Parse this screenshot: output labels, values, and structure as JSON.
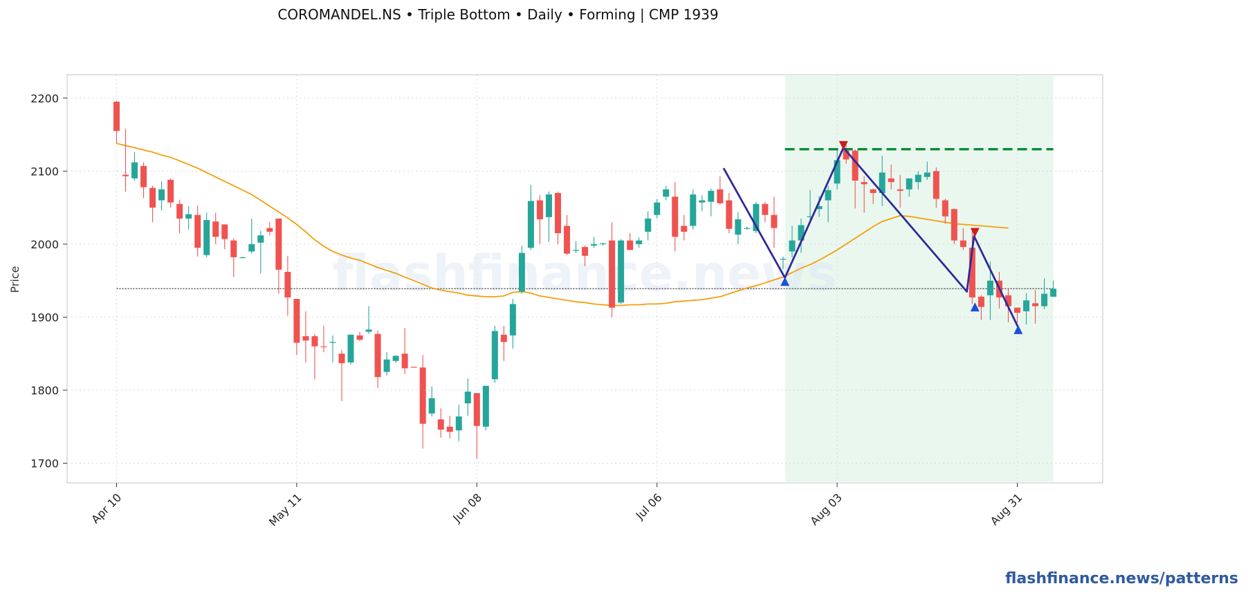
{
  "title": "COROMANDEL.NS  •  Triple Bottom  •  Daily  •  Forming  |  CMP 1939",
  "watermark": "flashfinance.news",
  "brand_link": "flashfinance.news/patterns",
  "colors": {
    "up": "#26a69a",
    "down": "#ef5350",
    "ma": "#f59e0b",
    "pattern": "#2e2a9a",
    "resistance": "#0a8a3a",
    "zone": "#dff2e6",
    "marker_low": "#1f4fd8",
    "marker_high": "#c81e1e",
    "cmp_line": "#333333"
  },
  "chart_data": {
    "type": "candlestick",
    "title": "COROMANDEL.NS  •  Triple Bottom  •  Daily  •  Forming  |  CMP 1939",
    "xlabel": "",
    "ylabel": "Price",
    "ylim": [
      1673,
      2232
    ],
    "yticks": [
      1700,
      1800,
      1900,
      2000,
      2100,
      2200
    ],
    "xticks": [
      {
        "label": "Apr 10",
        "index": 0
      },
      {
        "label": "May 11",
        "index": 20
      },
      {
        "label": "Jun 08",
        "index": 40
      },
      {
        "label": "Jul 06",
        "index": 60
      },
      {
        "label": "Aug 03",
        "index": 80
      },
      {
        "label": "Aug 31",
        "index": 100
      }
    ],
    "grid": true,
    "cmp": 1939,
    "resistance_level": 2130,
    "candles": [
      [
        2195,
        2196,
        2138,
        2155
      ],
      [
        2095,
        2158,
        2072,
        2093
      ],
      [
        2090,
        2126,
        2087,
        2112
      ],
      [
        2107,
        2112,
        2063,
        2078
      ],
      [
        2077,
        2080,
        2030,
        2050
      ],
      [
        2060,
        2086,
        2046,
        2075
      ],
      [
        2088,
        2090,
        2050,
        2057
      ],
      [
        2055,
        2061,
        2015,
        2035
      ],
      [
        2035,
        2052,
        2020,
        2041
      ],
      [
        2040,
        2053,
        1983,
        1995
      ],
      [
        1985,
        2043,
        1982,
        2033
      ],
      [
        2031,
        2043,
        2000,
        2010
      ],
      [
        2027,
        2027,
        1993,
        2007
      ],
      [
        2005,
        2008,
        1955,
        1982
      ],
      [
        1982,
        1983,
        1981,
        1982
      ],
      [
        1990,
        2035,
        1987,
        2000
      ],
      [
        2002,
        2018,
        1960,
        2012
      ],
      [
        2022,
        2030,
        2012,
        2017
      ],
      [
        2035,
        2035,
        1932,
        1965
      ],
      [
        1962,
        1984,
        1902,
        1927
      ],
      [
        1925,
        1925,
        1848,
        1865
      ],
      [
        1874,
        1908,
        1838,
        1868
      ],
      [
        1874,
        1877,
        1815,
        1860
      ],
      [
        1860,
        1888,
        1852,
        1859
      ],
      [
        1865,
        1875,
        1838,
        1866
      ],
      [
        1850,
        1855,
        1785,
        1837
      ],
      [
        1838,
        1876,
        1835,
        1876
      ],
      [
        1875,
        1880,
        1867,
        1869
      ],
      [
        1880,
        1915,
        1877,
        1883
      ],
      [
        1877,
        1882,
        1803,
        1818
      ],
      [
        1825,
        1852,
        1820,
        1842
      ],
      [
        1840,
        1848,
        1837,
        1847
      ],
      [
        1850,
        1885,
        1822,
        1830
      ],
      [
        1832,
        1832,
        1831,
        1831
      ],
      [
        1831,
        1848,
        1720,
        1754
      ],
      [
        1768,
        1805,
        1764,
        1789
      ],
      [
        1760,
        1775,
        1735,
        1746
      ],
      [
        1750,
        1765,
        1734,
        1743
      ],
      [
        1745,
        1780,
        1730,
        1764
      ],
      [
        1782,
        1816,
        1765,
        1798
      ],
      [
        1796,
        1796,
        1706,
        1751
      ],
      [
        1750,
        1806,
        1745,
        1806
      ],
      [
        1815,
        1888,
        1810,
        1881
      ],
      [
        1876,
        1888,
        1840,
        1866
      ],
      [
        1875,
        1925,
        1857,
        1918
      ],
      [
        1935,
        1998,
        1932,
        1988
      ],
      [
        1995,
        2081,
        1992,
        2059
      ],
      [
        2060,
        2067,
        2000,
        2034
      ],
      [
        2037,
        2072,
        2003,
        2068
      ],
      [
        2070,
        2072,
        2000,
        2015
      ],
      [
        2025,
        2040,
        1985,
        1987
      ],
      [
        1992,
        2004,
        1988,
        1992
      ],
      [
        1996,
        1998,
        1970,
        1984
      ],
      [
        1998,
        2010,
        1995,
        2000
      ],
      [
        2000,
        2002,
        1998,
        2001
      ],
      [
        2005,
        2030,
        1900,
        1913
      ],
      [
        1920,
        2007,
        1918,
        2005
      ],
      [
        2005,
        2015,
        1995,
        1992
      ],
      [
        2000,
        2009,
        1995,
        2005
      ],
      [
        2017,
        2045,
        2005,
        2035
      ],
      [
        2040,
        2062,
        2035,
        2057
      ],
      [
        2065,
        2080,
        2060,
        2075
      ],
      [
        2065,
        2085,
        1990,
        2010
      ],
      [
        2025,
        2040,
        2005,
        2017
      ],
      [
        2025,
        2075,
        2020,
        2068
      ],
      [
        2057,
        2067,
        2045,
        2060
      ],
      [
        2058,
        2076,
        2038,
        2073
      ],
      [
        2075,
        2093,
        2054,
        2056
      ],
      [
        2060,
        2070,
        2015,
        2021
      ],
      [
        2013,
        2044,
        2000,
        2034
      ],
      [
        2022,
        2024,
        2020,
        2022
      ],
      [
        2018,
        2058,
        2015,
        2055
      ],
      [
        2055,
        2058,
        2030,
        2040
      ],
      [
        2040,
        2065,
        1995,
        2022
      ],
      [
        1979,
        1983,
        1966,
        1980
      ],
      [
        1990,
        2025,
        1982,
        2005
      ],
      [
        2005,
        2035,
        1988,
        2026
      ],
      [
        2037,
        2074,
        2030,
        2038
      ],
      [
        2048,
        2066,
        2037,
        2052
      ],
      [
        2060,
        2080,
        2030,
        2074
      ],
      [
        2083,
        2130,
        2075,
        2115
      ],
      [
        2128,
        2138,
        2110,
        2116
      ],
      [
        2128,
        2130,
        2049,
        2087
      ],
      [
        2085,
        2093,
        2043,
        2082
      ],
      [
        2075,
        2076,
        2055,
        2070
      ],
      [
        2070,
        2121,
        2052,
        2098
      ],
      [
        2090,
        2109,
        2075,
        2085
      ],
      [
        2075,
        2095,
        2050,
        2073
      ],
      [
        2075,
        2090,
        2065,
        2090
      ],
      [
        2085,
        2100,
        2075,
        2095
      ],
      [
        2092,
        2113,
        2088,
        2098
      ],
      [
        2100,
        2105,
        2050,
        2062
      ],
      [
        2060,
        2062,
        2028,
        2038
      ],
      [
        2048,
        2049,
        2000,
        2005
      ],
      [
        2005,
        2022,
        1992,
        1996
      ],
      [
        1995,
        2019,
        1918,
        1927
      ],
      [
        1928,
        1930,
        1896,
        1914
      ],
      [
        1930,
        1976,
        1896,
        1950
      ],
      [
        1950,
        1962,
        1912,
        1927
      ],
      [
        1930,
        1940,
        1893,
        1915
      ],
      [
        1913,
        1913,
        1892,
        1906
      ],
      [
        1908,
        1933,
        1890,
        1923
      ],
      [
        1919,
        1937,
        1891,
        1915
      ],
      [
        1915,
        1953,
        1911,
        1932
      ],
      [
        1928,
        1950,
        1928,
        1939
      ]
    ],
    "ma_series": [
      2138,
      2135,
      2132,
      2129,
      2126,
      2122,
      2119,
      2114,
      2109,
      2104,
      2098,
      2092,
      2086,
      2080,
      2074,
      2068,
      2060,
      2052,
      2044,
      2036,
      2027,
      2017,
      2006,
      1997,
      1990,
      1985,
      1981,
      1978,
      1973,
      1968,
      1964,
      1960,
      1955,
      1950,
      1945,
      1940,
      1937,
      1935,
      1933,
      1930,
      1929,
      1928,
      1928,
      1929,
      1934,
      1935,
      1933,
      1929,
      1927,
      1925,
      1923,
      1921,
      1920,
      1918,
      1917,
      1916,
      1916,
      1917,
      1917,
      1918,
      1918,
      1919,
      1921,
      1922,
      1923,
      1924,
      1926,
      1928,
      1932,
      1936,
      1940,
      1943,
      1947,
      1951,
      1955,
      1961,
      1967,
      1972,
      1978,
      1985,
      1992,
      2000,
      2008,
      2016,
      2024,
      2031,
      2035,
      2039,
      2038,
      2036,
      2034,
      2032,
      2030,
      2028,
      2027,
      2026,
      2025,
      2024,
      2023,
      2022
    ],
    "ma_start_index": 0,
    "pattern_line": [
      [
        67.4,
        2104
      ],
      [
        74.2,
        1954
      ],
      [
        80.7,
        2132
      ],
      [
        94.4,
        1935
      ],
      [
        95.2,
        2011
      ],
      [
        100.1,
        1886
      ]
    ],
    "markers": [
      {
        "type": "low",
        "index": 74.2,
        "price": 1949
      },
      {
        "type": "high",
        "index": 80.7,
        "price": 2135
      },
      {
        "type": "low",
        "index": 95.3,
        "price": 1914
      },
      {
        "type": "high",
        "index": 95.3,
        "price": 2016
      },
      {
        "type": "low",
        "index": 100.1,
        "price": 1883
      }
    ],
    "highlight_zone": {
      "start_index": 74.2,
      "end_index": 104
    }
  }
}
